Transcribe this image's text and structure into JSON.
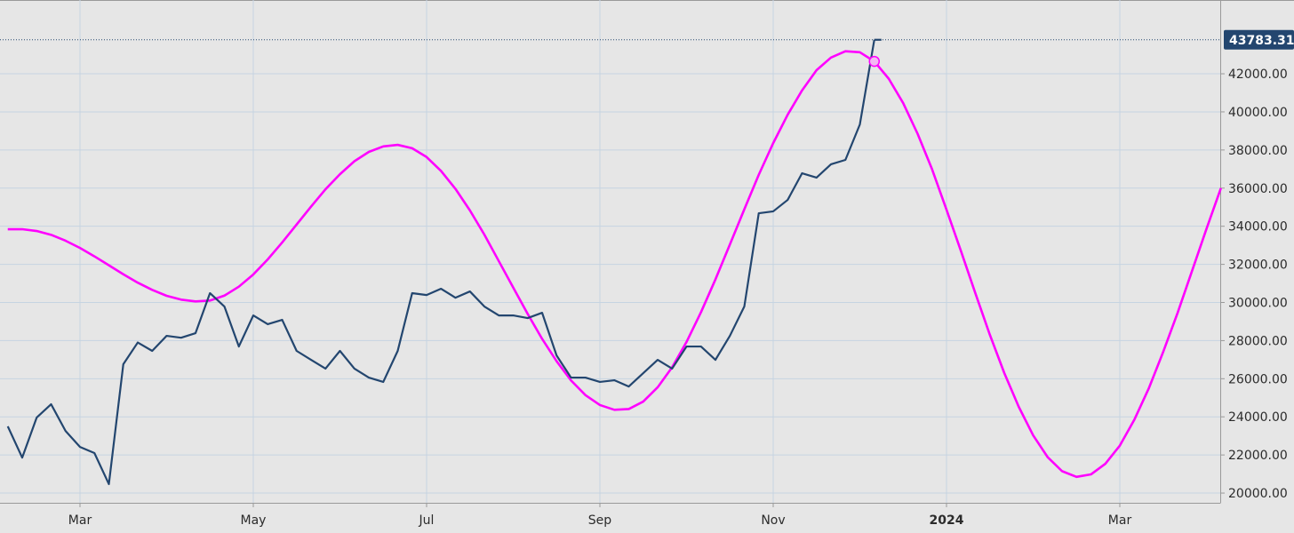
{
  "chart_data": {
    "type": "line",
    "categories": [
      null,
      null,
      null,
      null,
      null,
      "Mar",
      null,
      null,
      null,
      null,
      null,
      null,
      null,
      null,
      null,
      null,
      null,
      "May",
      null,
      null,
      null,
      null,
      null,
      null,
      null,
      null,
      null,
      null,
      null,
      "Jul",
      null,
      null,
      null,
      null,
      null,
      null,
      null,
      null,
      null,
      null,
      null,
      "Sep",
      null,
      null,
      null,
      null,
      null,
      null,
      null,
      null,
      null,
      null,
      null,
      "Nov",
      null,
      null,
      null,
      null,
      null,
      null,
      null,
      null,
      null,
      null,
      null,
      "2024",
      null,
      null,
      null,
      null,
      null,
      null,
      null,
      null,
      null,
      null,
      null,
      "Mar",
      null,
      null,
      null,
      null,
      null,
      null,
      null
    ],
    "series": [
      {
        "color": "#23466f",
        "values": [
          23500,
          21860,
          23960,
          24660,
          23260,
          22420,
          22100,
          20470,
          26760,
          27900,
          27460,
          28250,
          28150,
          28390,
          30490,
          29790,
          27690,
          29320,
          28860,
          29090,
          27460,
          26990,
          26530,
          27460,
          26530,
          26060,
          25830,
          27460,
          30490,
          30390,
          30720,
          30250,
          30580,
          29790,
          29320,
          29320,
          29180,
          29460,
          27220,
          26060,
          26060,
          25830,
          25920,
          25590,
          26290,
          26990,
          26530,
          27690,
          27690,
          26990,
          28250,
          29790,
          34680,
          34780,
          35380,
          36780,
          36550,
          37250,
          37480,
          39340,
          43783.31,
          null,
          null,
          null,
          null,
          null,
          null,
          null,
          null,
          null,
          null,
          null,
          null,
          null,
          null,
          null,
          null,
          null,
          null,
          null,
          null,
          null,
          null,
          null,
          null
        ]
      },
      {
        "color": "#ff00ff",
        "values": [
          33840,
          33845,
          33750,
          33550,
          33240,
          32860,
          32420,
          31950,
          31480,
          31040,
          30660,
          30350,
          30150,
          30055,
          30100,
          30360,
          30830,
          31470,
          32260,
          33150,
          34090,
          35030,
          35940,
          36730,
          37410,
          37900,
          38190,
          38270,
          38090,
          37630,
          36900,
          35960,
          34830,
          33560,
          32170,
          30780,
          29400,
          28090,
          26920,
          25910,
          25140,
          24620,
          24370,
          24410,
          24800,
          25550,
          26600,
          27930,
          29490,
          31210,
          33040,
          34890,
          36700,
          38360,
          39850,
          41130,
          42190,
          42850,
          43180,
          43130,
          42650,
          41740,
          40460,
          38850,
          36990,
          34870,
          32700,
          30480,
          28310,
          26300,
          24530,
          23030,
          21890,
          21150,
          20850,
          20980,
          21540,
          22490,
          23840,
          25480,
          27400,
          29450,
          31650,
          33860,
          36000
        ]
      }
    ],
    "ylim": [
      19490,
      45870
    ],
    "yticks": [
      {
        "value": 20000,
        "label": "20000.00"
      },
      {
        "value": 22000,
        "label": "22000.00"
      },
      {
        "value": 24000,
        "label": "24000.00"
      },
      {
        "value": 26000,
        "label": "26000.00"
      },
      {
        "value": 28000,
        "label": "28000.00"
      },
      {
        "value": 30000,
        "label": "30000.00"
      },
      {
        "value": 32000,
        "label": "32000.00"
      },
      {
        "value": 34000,
        "label": "34000.00"
      },
      {
        "value": 36000,
        "label": "36000.00"
      },
      {
        "value": 38000,
        "label": "38000.00"
      },
      {
        "value": 40000,
        "label": "40000.00"
      },
      {
        "value": 42000,
        "label": "42000.00"
      }
    ],
    "grid": true
  }
}
